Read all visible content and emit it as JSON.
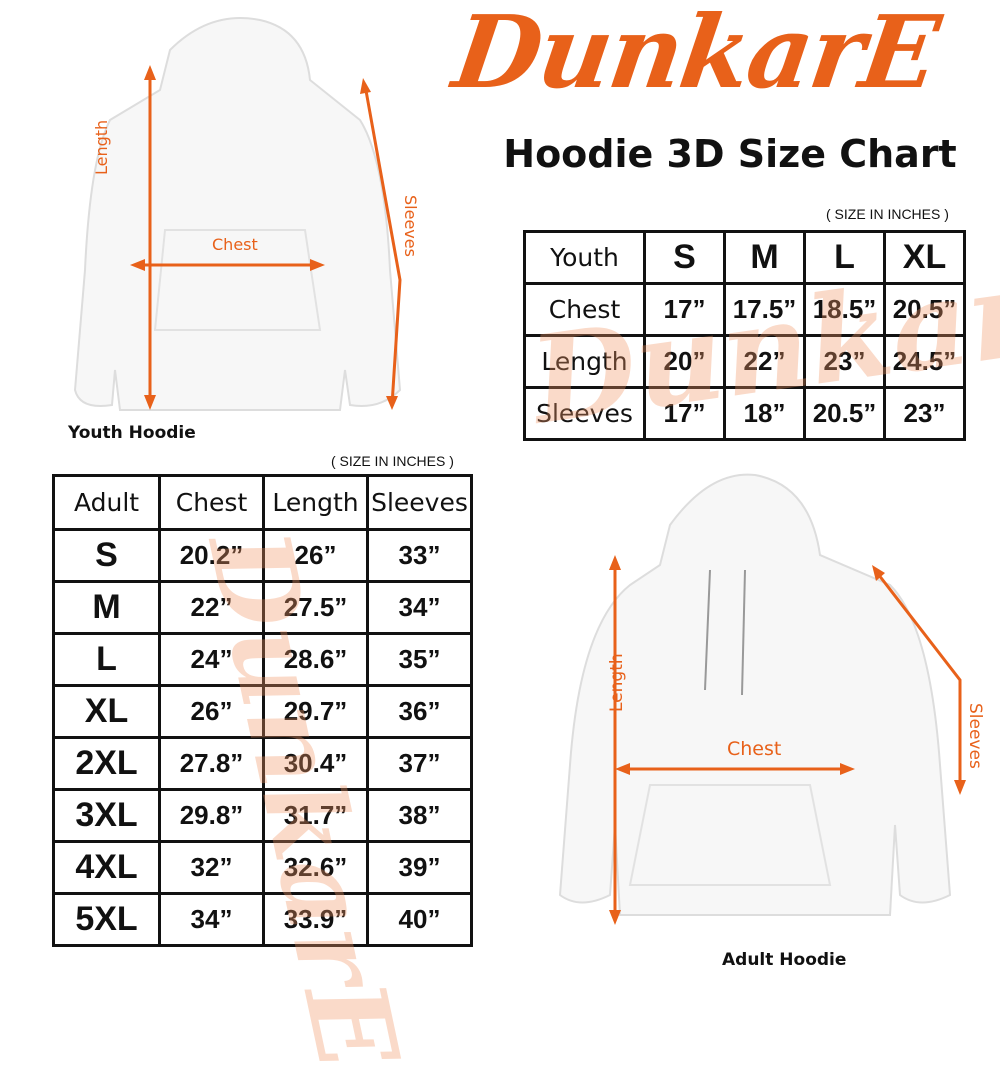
{
  "brand": {
    "logo_text": "DunkarE",
    "accent_color": "#e8611a"
  },
  "title": "Hoodie 3D Size Chart",
  "youth": {
    "caption": "Youth Hoodie",
    "labels": {
      "length": "Length",
      "chest": "Chest",
      "sleeves": "Sleeves"
    },
    "note": "( SIZE IN INCHES )",
    "table": {
      "header": [
        "Youth",
        "S",
        "M",
        "L",
        "XL"
      ],
      "rows": [
        [
          "Chest",
          "17”",
          "17.5”",
          "18.5”",
          "20.5”"
        ],
        [
          "Length",
          "20”",
          "22”",
          "23”",
          "24.5”"
        ],
        [
          "Sleeves",
          "17”",
          "18”",
          "20.5”",
          "23”"
        ]
      ]
    }
  },
  "adult": {
    "caption": "Adult Hoodie",
    "labels": {
      "length": "Length",
      "chest": "Chest",
      "sleeves": "Sleeves"
    },
    "note": "( SIZE IN INCHES )",
    "table": {
      "header": [
        "Adult",
        "Chest",
        "Length",
        "Sleeves"
      ],
      "rows": [
        [
          "S",
          "20.2”",
          "26”",
          "33”"
        ],
        [
          "M",
          "22”",
          "27.5”",
          "34”"
        ],
        [
          "L",
          "24”",
          "28.6”",
          "35”"
        ],
        [
          "XL",
          "26”",
          "29.7”",
          "36”"
        ],
        [
          "2XL",
          "27.8”",
          "30.4”",
          "37”"
        ],
        [
          "3XL",
          "29.8”",
          "31.7”",
          "38”"
        ],
        [
          "4XL",
          "32”",
          "32.6”",
          "39”"
        ],
        [
          "5XL",
          "34”",
          "33.9”",
          "40”"
        ]
      ]
    }
  }
}
